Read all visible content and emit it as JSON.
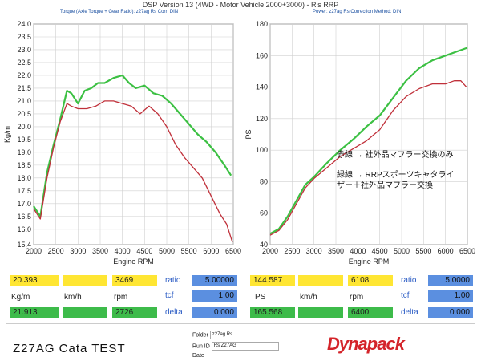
{
  "header": {
    "title": "DSP Version 13 (4WD - Motor Vehicle 2000+3000) - R's  RRP",
    "left_info": "Torque (Axle Torque + Gear Ratio): z27ag Rs      Corr: DIN",
    "right_info": "Power: z27ag Rs      Correction Method: DIN"
  },
  "chart_data": [
    {
      "type": "line",
      "xlabel": "Engine RPM",
      "ylabel": "Kg/m",
      "xlim": [
        2000,
        6500
      ],
      "ylim": [
        15.4,
        24.0
      ],
      "xticks": [
        2000,
        2500,
        3000,
        3500,
        4000,
        4500,
        5000,
        5500,
        6000,
        6500
      ],
      "yticks": [
        "15.4",
        "16.0",
        "16.5",
        "17.0",
        "17.5",
        "18.0",
        "18.5",
        "19.0",
        "19.5",
        "20.0",
        "20.5",
        "21.0",
        "21.5",
        "22.0",
        "22.5",
        "23.0",
        "23.5",
        "24.0"
      ],
      "grid": true,
      "series": [
        {
          "color": "#3cc043",
          "x": [
            2000,
            2150,
            2300,
            2450,
            2600,
            2750,
            2850,
            3000,
            3150,
            3300,
            3450,
            3600,
            3800,
            4000,
            4150,
            4300,
            4500,
            4700,
            4900,
            5100,
            5300,
            5500,
            5700,
            5900,
            6100,
            6300,
            6450
          ],
          "y": [
            16.9,
            16.5,
            18.2,
            19.3,
            20.3,
            21.4,
            21.3,
            20.9,
            21.4,
            21.5,
            21.7,
            21.7,
            21.9,
            22.0,
            21.7,
            21.5,
            21.6,
            21.3,
            21.2,
            20.9,
            20.5,
            20.1,
            19.7,
            19.4,
            19.0,
            18.5,
            18.1
          ]
        },
        {
          "color": "#c0303a",
          "x": [
            2000,
            2150,
            2300,
            2450,
            2600,
            2750,
            2850,
            3000,
            3200,
            3400,
            3600,
            3800,
            4000,
            4200,
            4400,
            4600,
            4800,
            5000,
            5200,
            5400,
            5600,
            5800,
            6000,
            6200,
            6350,
            6480
          ],
          "y": [
            16.8,
            16.4,
            18.0,
            19.2,
            20.2,
            20.9,
            20.8,
            20.7,
            20.7,
            20.8,
            21.0,
            21.0,
            20.9,
            20.8,
            20.5,
            20.8,
            20.5,
            20.0,
            19.3,
            18.8,
            18.4,
            18.0,
            17.3,
            16.6,
            16.2,
            15.5
          ]
        }
      ]
    },
    {
      "type": "line",
      "xlabel": "Engine RPM",
      "ylabel": "PS",
      "xlim": [
        2000,
        6500
      ],
      "ylim": [
        40,
        180
      ],
      "xticks": [
        2000,
        2500,
        3000,
        3500,
        4000,
        4500,
        5000,
        5500,
        6000,
        6500
      ],
      "yticks": [
        40,
        60,
        80,
        100,
        120,
        140,
        160,
        180
      ],
      "grid": true,
      "series": [
        {
          "color": "#3cc043",
          "x": [
            2000,
            2200,
            2400,
            2600,
            2800,
            3000,
            3300,
            3600,
            3900,
            4200,
            4500,
            4800,
            5100,
            5400,
            5700,
            6000,
            6300,
            6500
          ],
          "y": [
            47,
            50,
            58,
            68,
            78,
            83,
            92,
            100,
            107,
            115,
            122,
            133,
            144,
            152,
            157,
            160,
            163,
            165
          ]
        },
        {
          "color": "#c0303a",
          "x": [
            2000,
            2200,
            2400,
            2600,
            2800,
            3000,
            3300,
            3600,
            3900,
            4200,
            4500,
            4800,
            5100,
            5400,
            5700,
            6000,
            6200,
            6350,
            6480
          ],
          "y": [
            46,
            49,
            56,
            66,
            76,
            82,
            89,
            96,
            101,
            106,
            113,
            125,
            134,
            139,
            142,
            142,
            144,
            144,
            140
          ]
        }
      ]
    }
  ],
  "legend_note": {
    "line1": "赤線  →  社外品マフラー交換のみ",
    "line2": "緑線  →  RRPスポーツキャタライ",
    "line3": "ザー＋社外品マフラー交換"
  },
  "readout": {
    "left": {
      "row1": {
        "torque": "20.393",
        "kmh": "",
        "rpm": "3469",
        "tag": "ratio",
        "tag_value": "5.00000"
      },
      "row2": {
        "tag": "tcf",
        "tag_value": "1.00"
      },
      "row3": {
        "unit_torque": "Kg/m",
        "unit_speed": "km/h",
        "unit_rpm": "rpm",
        "tag": "delta"
      },
      "row4": {
        "torque": "21.913",
        "kmh": "",
        "rpm": "2726",
        "tag_value": "0.000"
      }
    },
    "right": {
      "row1": {
        "power": "144.587",
        "kmh": "",
        "rpm": "6108",
        "tag": "ratio",
        "tag_value": "5.0000"
      },
      "row2": {
        "tag": "tcf",
        "tag_value": "1.00"
      },
      "row3": {
        "unit_power": "PS",
        "unit_speed": "km/h",
        "unit_rpm": "rpm",
        "tag": "delta"
      },
      "row4": {
        "power": "165.568",
        "kmh": "",
        "rpm": "6400",
        "tag_value": "0.000"
      }
    }
  },
  "footer": {
    "test_name": "Z27AG   Cata TEST",
    "folder_label": "Folder",
    "folder_value": "z27ag Rs",
    "run_label": "Run ID",
    "run_value": "Rs Z27AG",
    "date_label": "Date",
    "date_value": "",
    "logo": "Dynapack"
  }
}
